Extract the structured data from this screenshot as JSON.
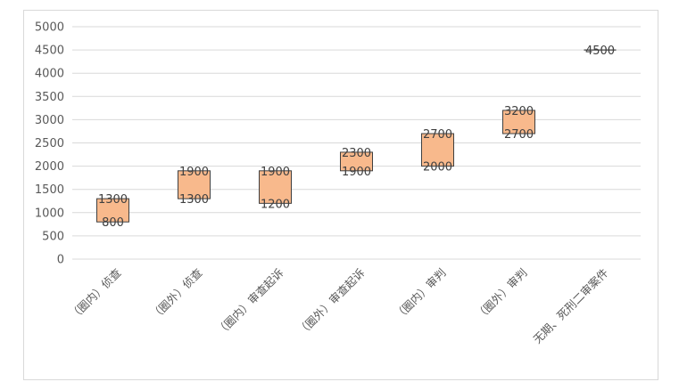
{
  "chart_data": {
    "type": "floating-bar",
    "title": "",
    "xlabel": "",
    "ylabel": "",
    "ylim": [
      0,
      5000
    ],
    "y_ticks": [
      "0",
      "500",
      "1000",
      "1500",
      "2000",
      "2500",
      "3000",
      "3500",
      "4000",
      "4500",
      "5000"
    ],
    "grid": true,
    "categories": [
      "（圈内）侦查",
      "（圈外）侦查",
      "（圈内）审查起诉",
      "（圈外）审查起诉",
      "（圈内）审判",
      "（圈外）审判",
      "无期、死刑二审案件"
    ],
    "series": [
      {
        "low": 800,
        "high": 1300
      },
      {
        "low": 1300,
        "high": 1900
      },
      {
        "low": 1200,
        "high": 1900
      },
      {
        "low": 1900,
        "high": 2300
      },
      {
        "low": 2000,
        "high": 2700
      },
      {
        "low": 2700,
        "high": 3200
      },
      {
        "low": 4500,
        "high": 4500
      }
    ],
    "data_labels": [
      {
        "low": "800",
        "high": "1300"
      },
      {
        "low": "1300",
        "high": "1900"
      },
      {
        "low": "1200",
        "high": "1900"
      },
      {
        "low": "1900",
        "high": "2300"
      },
      {
        "low": "2000",
        "high": "2700"
      },
      {
        "low": "2700",
        "high": "3200"
      },
      {
        "low": "4500",
        "high": "4500"
      }
    ],
    "colors": {
      "bar_fill": "#f8b98c",
      "bar_stroke": "#404040",
      "grid": "#d9d9d9",
      "axis_text": "#595959"
    }
  }
}
